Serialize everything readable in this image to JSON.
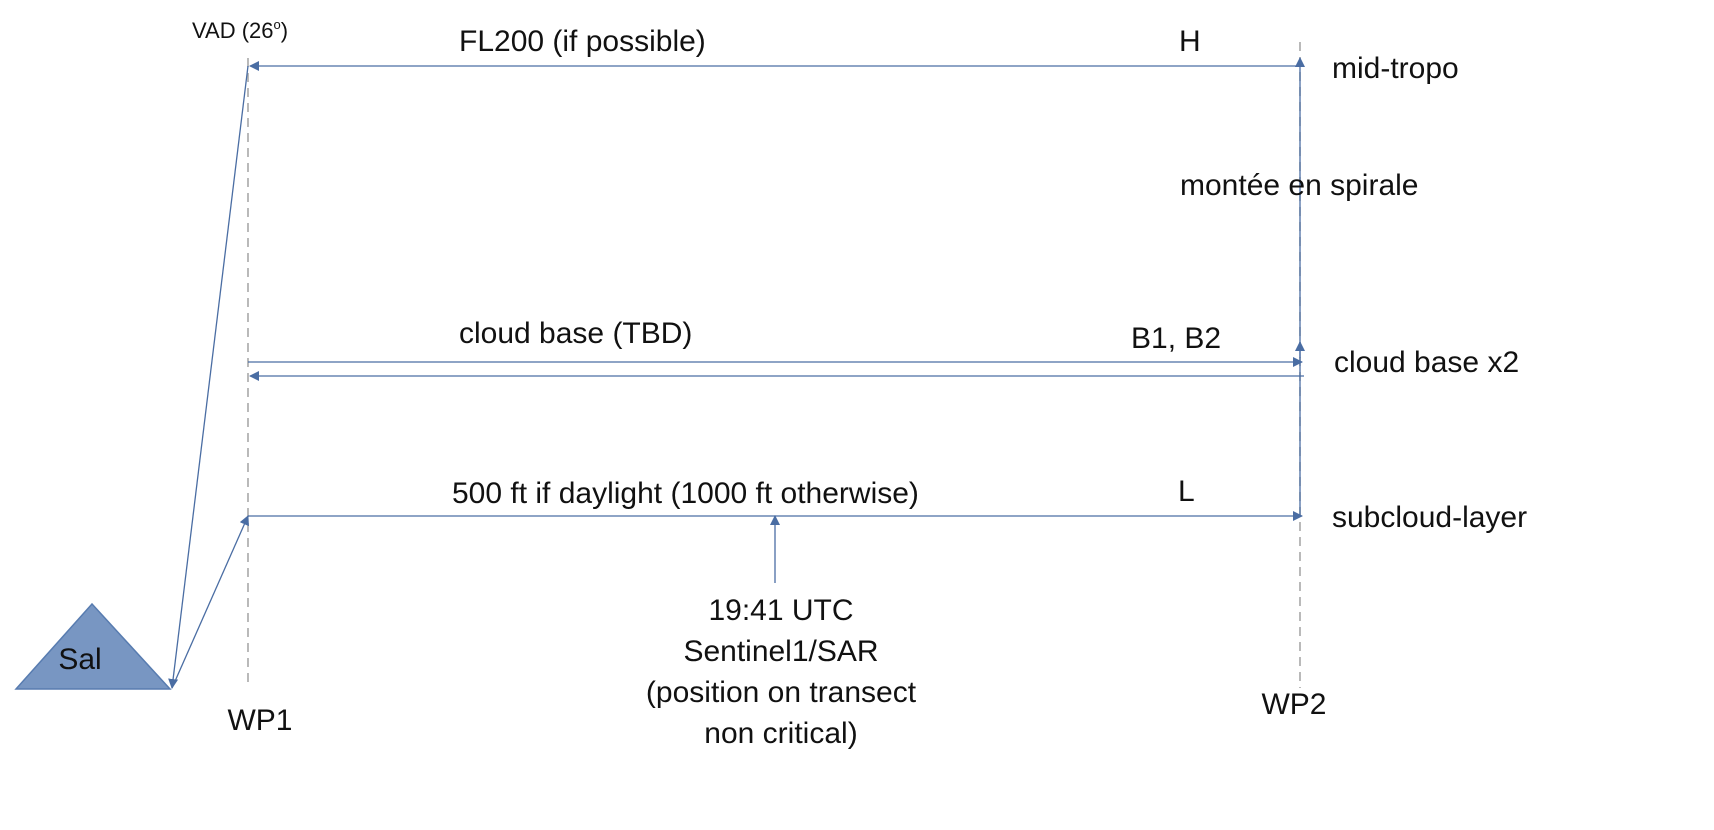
{
  "colors": {
    "line": "#4a6da3",
    "guide": "#a8a8a8",
    "triangle_fill": "#7896c2",
    "triangle_stroke": "#587cb0",
    "text": "#111111"
  },
  "labels": {
    "vad": "VAD (26",
    "vad_degree": "o",
    "vad_close": ")",
    "fl200": "FL200 (if possible)",
    "h": "H",
    "mid_tropo": "mid-tropo",
    "spiral": "montée en spirale",
    "cloud_base_tbd": "cloud base (TBD)",
    "b1b2": "B1, B2",
    "cloud_base_x2": "cloud base x2",
    "low_leg": "500 ft if daylight (1000 ft otherwise)",
    "l": "L",
    "subcloud": "subcloud-layer",
    "sal": "Sal",
    "wp1": "WP1",
    "wp2": "WP2",
    "sat_time": "19:41 UTC",
    "sat_name": "Sentinel1/SAR",
    "sat_note1": "(position on transect",
    "sat_note2": "non critical)"
  }
}
